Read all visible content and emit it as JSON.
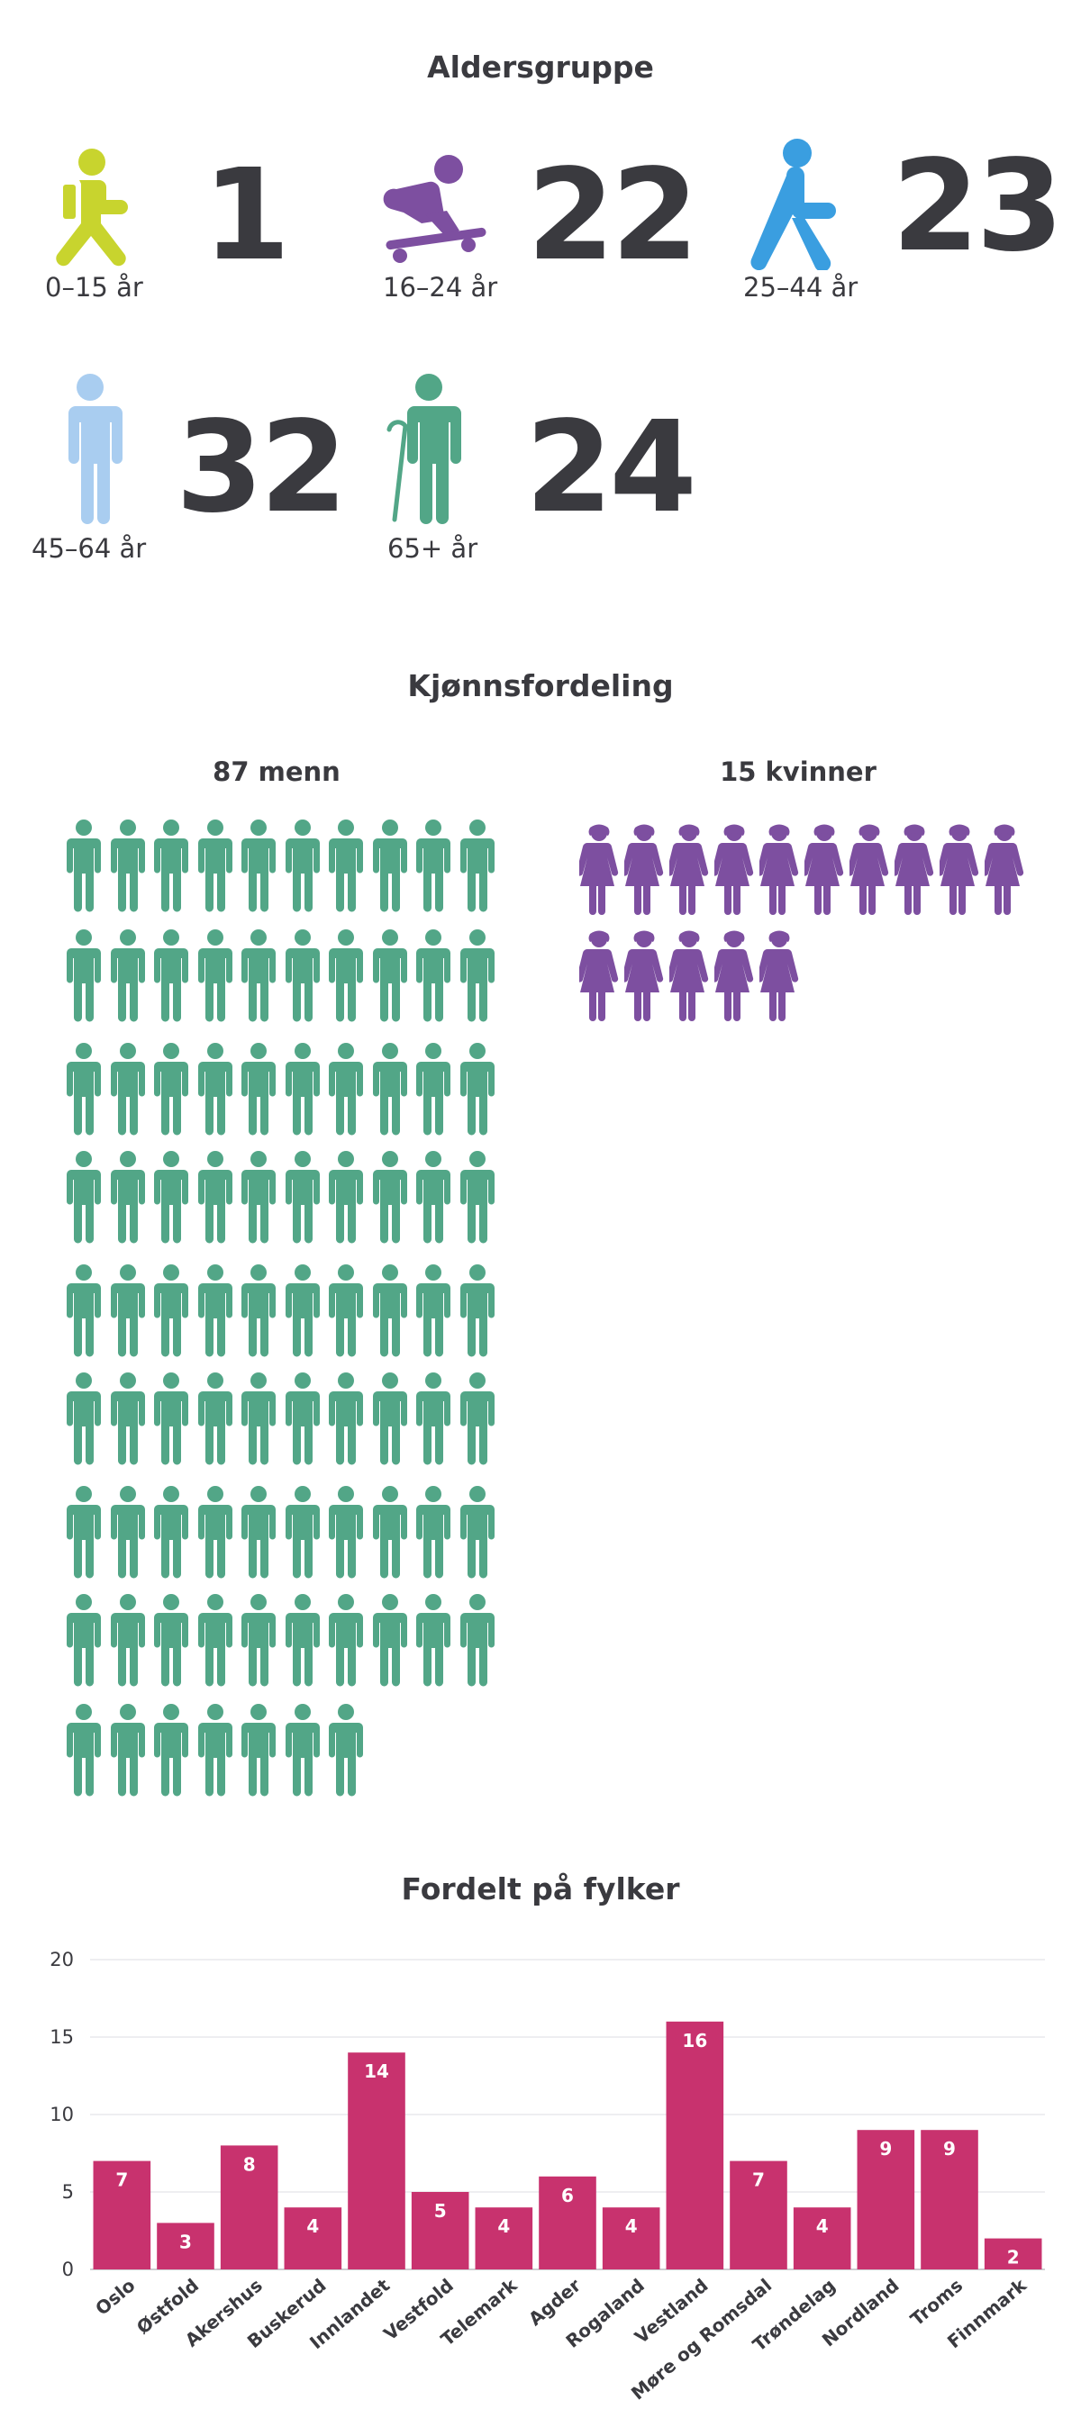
{
  "age": {
    "title": "Aldersgruppe",
    "groups": [
      {
        "label": "0–15 år",
        "count": "1",
        "icon": "child-sitting-icon",
        "color": "#c8d42e"
      },
      {
        "label": "16–24 år",
        "count": "22",
        "icon": "skateboarder-icon",
        "color": "#7d4fa0"
      },
      {
        "label": "25–44 år",
        "count": "23",
        "icon": "walking-person-icon",
        "color": "#3a9ee0"
      },
      {
        "label": "45–64 år",
        "count": "32",
        "icon": "standing-person-icon",
        "color": "#a9cdf0"
      },
      {
        "label": "65+ år",
        "count": "24",
        "icon": "elderly-cane-icon",
        "color": "#52a687"
      }
    ]
  },
  "gender": {
    "title": "Kjønnsfordeling",
    "men_label": "87 menn",
    "women_label": "15 kvinner",
    "men_count": 87,
    "women_count": 15,
    "men_color": "#52a687",
    "women_color": "#7d4fa0"
  },
  "counties": {
    "title": "Fordelt på fylker"
  },
  "chart_data": {
    "type": "bar",
    "title": "Fordelt på fylker",
    "categories": [
      "Oslo",
      "Østfold",
      "Akershus",
      "Buskerud",
      "Innlandet",
      "Vestfold",
      "Telemark",
      "Agder",
      "Rogaland",
      "Vestland",
      "Møre og Romsdal",
      "Trøndelag",
      "Nordland",
      "Troms",
      "Finnmark"
    ],
    "values": [
      7,
      3,
      8,
      4,
      14,
      5,
      4,
      6,
      4,
      16,
      7,
      4,
      9,
      9,
      2
    ],
    "ylim": [
      0,
      20
    ],
    "yticks": [
      0,
      5,
      10,
      15,
      20
    ],
    "grid": true,
    "bar_color": "#c8326e"
  }
}
